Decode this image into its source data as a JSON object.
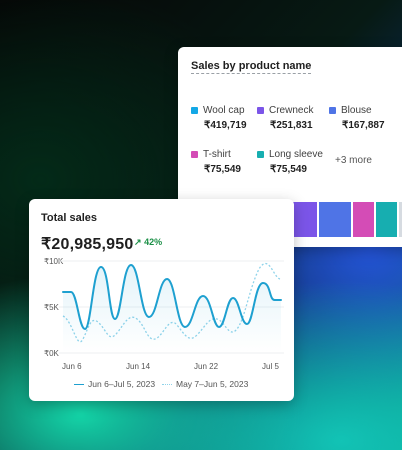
{
  "product_card": {
    "title": "Sales by product name",
    "items": [
      {
        "name": "Wool cap",
        "value": "₹419,719",
        "color": "#13a8e6"
      },
      {
        "name": "Crewneck",
        "value": "₹251,831",
        "color": "#7b55e8"
      },
      {
        "name": "Blouse",
        "value": "₹167,887",
        "color": "#4f74e6"
      },
      {
        "name": "T-shirt",
        "value": "₹75,549",
        "color": "#d44cb6"
      },
      {
        "name": "Long sleeve",
        "value": "₹75,549",
        "color": "#17aeb0"
      }
    ],
    "more_label": "+3 more",
    "bar_segments": [
      {
        "color": "#17a6e6"
      },
      {
        "color": "#7b55e8"
      },
      {
        "color": "#4f74e6"
      },
      {
        "color": "#d44cb6"
      },
      {
        "color": "#17aeb0"
      },
      {
        "color": "#d6dbe1"
      }
    ]
  },
  "sales_card": {
    "title": "Total sales",
    "total": "₹20,985,950",
    "change": "42%",
    "change_color": "#1a8f46",
    "y_ticks": [
      "₹10K",
      "₹5K",
      "₹0K"
    ],
    "x_ticks": [
      "Jun 6",
      "Jun 14",
      "Jun 22",
      "Jul 5"
    ],
    "legend_current": "Jun 6–Jul 5, 2023",
    "legend_previous": "May 7–Jun 5, 2023",
    "line_color": "#1ea0d0",
    "prev_line_color": "#8fd3ea"
  }
}
